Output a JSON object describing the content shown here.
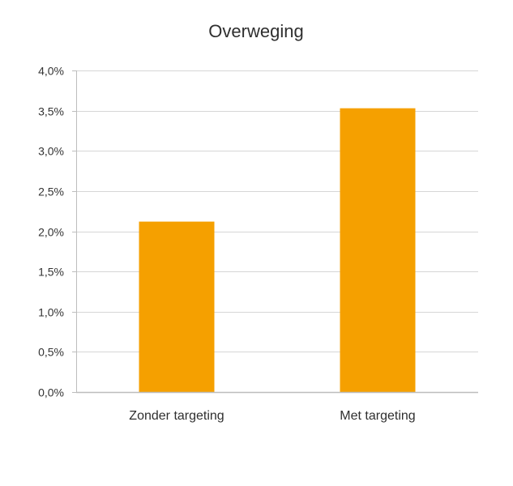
{
  "chart_data": {
    "type": "bar",
    "title": "Overweging",
    "xlabel": "",
    "ylabel": "",
    "categories": [
      "Zonder targeting",
      "Met targeting"
    ],
    "values": [
      2.12,
      3.53
    ],
    "ylim": [
      0,
      4
    ],
    "yticks": [
      0,
      0.5,
      1,
      1.5,
      2,
      2.5,
      3,
      3.5,
      4
    ],
    "ytick_labels": [
      "0,0%",
      "0,5%",
      "1,0%",
      "1,5%",
      "2,0%",
      "2,5%",
      "3,0%",
      "3,5%",
      "4,0%"
    ],
    "grid": true,
    "legend": "none",
    "colors": {
      "bar": "#F5A000",
      "grid": "#D6D6D6",
      "axis": "#BDBDBD"
    }
  }
}
